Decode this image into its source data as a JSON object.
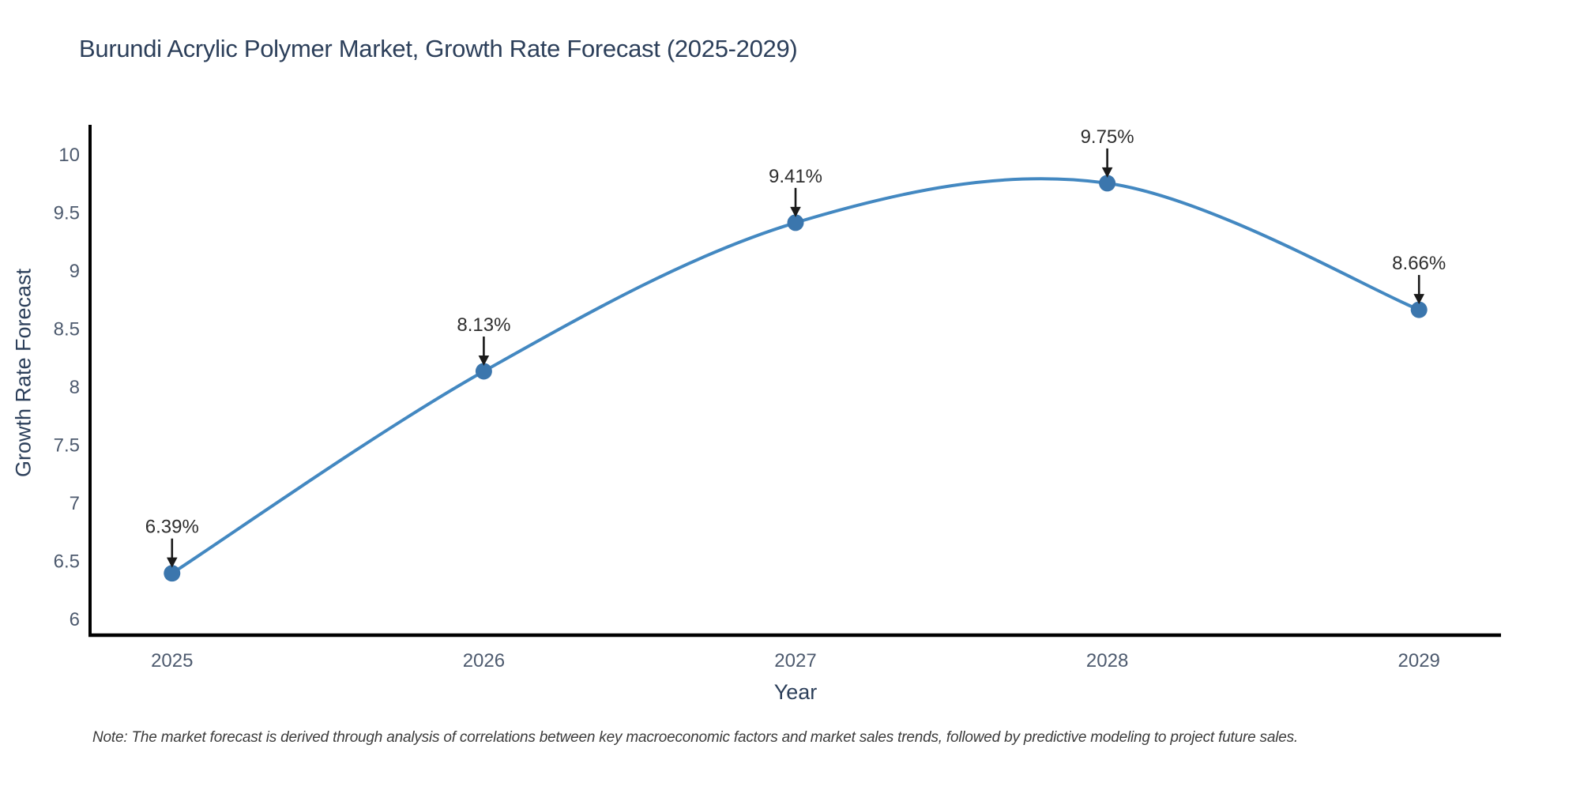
{
  "note": "Note: The market forecast is derived through analysis of correlations between key macroeconomic factors and market sales trends, followed by predictive modeling to project future sales.",
  "colors": {
    "line": "#4388c1",
    "marker": "#3b76ad",
    "axis": "#000000",
    "annotation": "#1a1a1a",
    "annotation_text": "#2e2e2e",
    "tick_text": "#4d5a6e",
    "title_text": "#2c3f5a",
    "background": "#ffffff"
  },
  "chart_data": {
    "type": "line",
    "title": "Burundi Acrylic Polymer Market, Growth Rate Forecast (2025-2029)",
    "xlabel": "Year",
    "ylabel": "Growth Rate Forecast",
    "x": [
      2025,
      2026,
      2027,
      2028,
      2029
    ],
    "y": [
      6.39,
      8.13,
      9.41,
      9.75,
      8.66
    ],
    "point_labels": [
      "6.39%",
      "8.13%",
      "9.41%",
      "9.75%",
      "8.66%"
    ],
    "line_shape": "spline",
    "marker_size": 21,
    "xticks": [
      "2025",
      "2026",
      "2027",
      "2028",
      "2029"
    ],
    "xtick_values": [
      2025,
      2026,
      2027,
      2028,
      2029
    ],
    "yticks": [
      "6",
      "6.5",
      "7",
      "7.5",
      "8",
      "8.5",
      "9",
      "9.5",
      "10"
    ],
    "ytick_values": [
      6,
      6.5,
      7,
      7.5,
      8,
      8.5,
      9,
      9.5,
      10
    ],
    "xlim": [
      2024.737,
      2029.263
    ],
    "ylim": [
      5.857,
      10.253
    ],
    "grid": false,
    "legend": "none"
  }
}
